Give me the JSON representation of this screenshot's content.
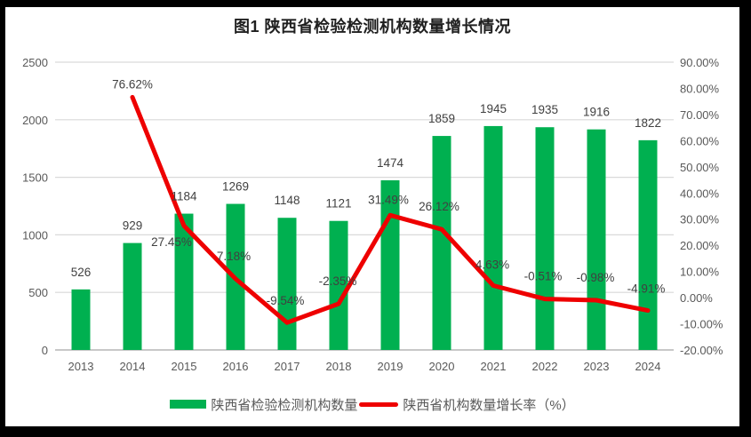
{
  "title": "图1 陕西省检验检测机构数量增长情况",
  "colors": {
    "frame": "#000000",
    "background": "#ffffff",
    "bar": "#00b050",
    "line": "#ee0000",
    "grid": "#d9d9d9",
    "baseline": "#c8c8c8",
    "axis_text": "#595959",
    "data_label": "#404040",
    "title_text": "#1f1f1f"
  },
  "legend": {
    "bar_label": "陕西省检验检测机构数量",
    "line_label": "陕西省机构数量增长率（%）"
  },
  "chart_data": {
    "type": "combo (bar + line)",
    "title": "图1 陕西省检验检测机构数量增长情况",
    "xlabel": "",
    "ylabel_left": "",
    "ylabel_right": "",
    "grid": true,
    "legend_position": "bottom",
    "categories": [
      "2013",
      "2014",
      "2015",
      "2016",
      "2017",
      "2018",
      "2019",
      "2020",
      "2021",
      "2022",
      "2023",
      "2024"
    ],
    "series": [
      {
        "name": "陕西省检验检测机构数量",
        "type": "bar",
        "axis": "left",
        "color": "#00b050",
        "values": [
          526,
          929,
          1184,
          1269,
          1148,
          1121,
          1474,
          1859,
          1945,
          1935,
          1916,
          1822
        ],
        "labels": [
          "526",
          "929",
          "1184",
          "1269",
          "1148",
          "1121",
          "1474",
          "1859",
          "1945",
          "1935",
          "1916",
          "1822"
        ]
      },
      {
        "name": "陕西省机构数量增长率（%）",
        "type": "line",
        "axis": "right",
        "color": "#ee0000",
        "values": [
          null,
          76.62,
          27.45,
          7.18,
          -9.54,
          -2.35,
          31.49,
          26.12,
          4.63,
          -0.51,
          -0.98,
          -4.91
        ],
        "labels": [
          null,
          "76.62%",
          "27.45%",
          "7.18%",
          "-9.54%",
          "-2.35%",
          "31.49%",
          "26.12%",
          "4.63%",
          "-0.51%",
          "-0.98%",
          "-4.91%"
        ],
        "label_offsets": [
          null,
          [
            0,
            -10
          ],
          [
            -14,
            23
          ],
          [
            -2,
            -21
          ],
          [
            -2,
            -20
          ],
          [
            -1,
            -21
          ],
          [
            -2,
            -13
          ],
          [
            -3,
            -21
          ],
          [
            -1,
            -19
          ],
          [
            -2,
            -21
          ],
          [
            -1,
            -21
          ],
          [
            -2,
            -20
          ]
        ]
      }
    ],
    "left_axis": {
      "min": 0,
      "max": 2500,
      "step": 500,
      "ticks": [
        "2500",
        "2000",
        "1500",
        "1000",
        "500",
        "0"
      ]
    },
    "right_axis": {
      "min": -20,
      "max": 90,
      "step": 10,
      "ticks": [
        "90.00%",
        "80.00%",
        "70.00%",
        "60.00%",
        "50.00%",
        "40.00%",
        "30.00%",
        "20.00%",
        "10.00%",
        "0.00%",
        "-10.00%",
        "-20.00%"
      ]
    }
  }
}
